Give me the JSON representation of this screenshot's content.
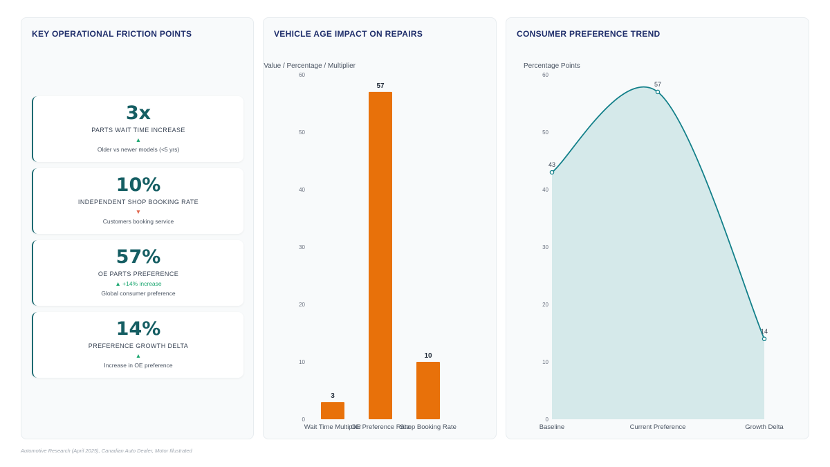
{
  "kpi_panel": {
    "title": "KEY OPERATIONAL FRICTION POINTS",
    "cards": [
      {
        "value": "3x",
        "label": "PARTS WAIT TIME INCREASE",
        "trend_icon": "▲",
        "trend_text": "",
        "trend_dir": "up",
        "note": "Older vs newer models (<5 yrs)"
      },
      {
        "value": "10%",
        "label": "INDEPENDENT SHOP BOOKING RATE",
        "trend_icon": "▼",
        "trend_text": "",
        "trend_dir": "down",
        "note": "Customers booking service"
      },
      {
        "value": "57%",
        "label": "OE PARTS PREFERENCE",
        "trend_icon": "▲",
        "trend_text": "+14% increase",
        "trend_dir": "up",
        "note": "Global consumer preference"
      },
      {
        "value": "14%",
        "label": "PREFERENCE GROWTH DELTA",
        "trend_icon": "▲",
        "trend_text": "",
        "trend_dir": "up",
        "note": "Increase in OE preference"
      }
    ]
  },
  "bar_panel": {
    "title": "VEHICLE AGE IMPACT ON REPAIRS"
  },
  "line_panel": {
    "title": "CONSUMER PREFERENCE TREND"
  },
  "source": "Automotive Research (April 2025), Canadian Auto Dealer, Motor Illustrated",
  "colors": {
    "bar": "#e8710a",
    "line": "#13808a",
    "area": "#d5e9ea",
    "kpi_value": "#155e63"
  },
  "chart_data": [
    {
      "type": "bar",
      "title": "VEHICLE AGE IMPACT ON REPAIRS",
      "ylabel": "Value / Percentage / Multiplier",
      "categories": [
        "Wait Time Multiplier",
        "OE Preference Rate",
        "Shop Booking Rate"
      ],
      "values": [
        3,
        57,
        10
      ],
      "ylim": [
        0,
        60
      ],
      "yticks": [
        0,
        10,
        20,
        30,
        40,
        50,
        60
      ],
      "grid": false,
      "data_labels": true
    },
    {
      "type": "area",
      "title": "CONSUMER PREFERENCE TREND",
      "ylabel": "Percentage Points",
      "categories": [
        "Baseline",
        "Current Preference",
        "Growth Delta"
      ],
      "values": [
        43,
        57,
        14
      ],
      "ylim": [
        0,
        60
      ],
      "yticks": [
        0,
        10,
        20,
        30,
        40,
        50,
        60
      ],
      "grid": false,
      "data_labels": true,
      "smooth": true
    }
  ]
}
